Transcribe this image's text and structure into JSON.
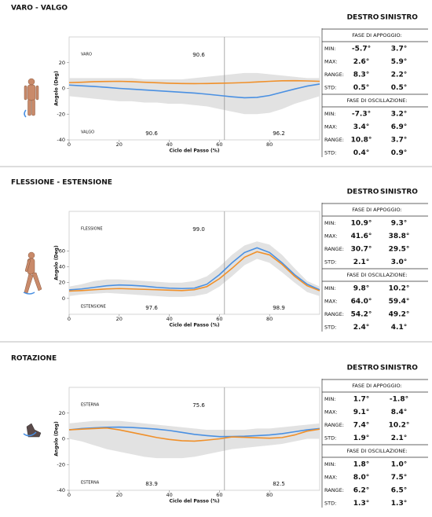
{
  "sections": [
    {
      "title": "VARO - VALGO",
      "chart": {
        "type": "line",
        "y_label": "Angolo (Deg)",
        "x_label": "Ciclo del Passo (%)",
        "xlim": [
          0,
          100
        ],
        "xticks": [
          0,
          20,
          40,
          60,
          80
        ],
        "ylim": [
          -40,
          40
        ],
        "yticks": [
          -40,
          -20,
          0,
          20
        ],
        "toe_off": 62,
        "annotations": {
          "top_left": "VARO",
          "top_center": "90.6",
          "bottom_left": "VALGO",
          "bottom_center": "90.6",
          "bottom_right": "96.2"
        },
        "x": [
          0,
          5,
          10,
          15,
          20,
          25,
          30,
          35,
          40,
          45,
          50,
          55,
          60,
          65,
          70,
          75,
          80,
          85,
          90,
          95,
          100
        ],
        "band": {
          "color": "#e2e2e2",
          "upper": [
            8,
            8,
            8,
            8,
            8,
            8,
            7,
            7,
            7,
            7,
            8,
            9,
            10,
            11,
            12,
            12,
            11,
            10,
            9,
            8,
            8
          ],
          "lower": [
            -6,
            -7,
            -8,
            -9,
            -10,
            -10,
            -11,
            -11,
            -12,
            -12,
            -13,
            -14,
            -16,
            -18,
            -20,
            -20,
            -19,
            -16,
            -12,
            -9,
            -6
          ]
        },
        "series": [
          {
            "color": "#4a90e2",
            "values": [
              2.6,
              2,
              1.5,
              0.8,
              0,
              -0.6,
              -1.2,
              -1.8,
              -2.4,
              -3,
              -3.6,
              -4.5,
              -5.5,
              -6.5,
              -7.3,
              -7,
              -5.5,
              -3,
              -0.5,
              1.8,
              3.4
            ]
          },
          {
            "color": "#f0902a",
            "values": [
              4.5,
              4.8,
              5.2,
              5.4,
              5.5,
              5.2,
              4.8,
              4.4,
              4,
              3.8,
              3.7,
              3.8,
              4,
              4.2,
              4.5,
              5,
              5.5,
              5.9,
              6,
              5.8,
              5.5
            ]
          }
        ]
      },
      "table": {
        "header": [
          "DESTRO",
          "SINISTRO"
        ],
        "groups": [
          {
            "title": "FASE DI APPOGGIO:",
            "rows": [
              [
                "MIN:",
                "-5.7°",
                "3.7°"
              ],
              [
                "MAX:",
                "2.6°",
                "5.9°"
              ],
              [
                "RANGE:",
                "8.3°",
                "2.2°"
              ],
              [
                "STD:",
                "0.5°",
                "0.5°"
              ]
            ]
          },
          {
            "title": "FASE DI OSCILLAZIONE:",
            "rows": [
              [
                "MIN:",
                "-7.3°",
                "3.2°"
              ],
              [
                "MAX:",
                "3.4°",
                "6.9°"
              ],
              [
                "RANGE:",
                "10.8°",
                "3.7°"
              ],
              [
                "STD:",
                "0.4°",
                "0.9°"
              ]
            ]
          }
        ]
      }
    },
    {
      "title": "FLESSIONE - ESTENSIONE",
      "chart": {
        "type": "line",
        "y_label": "Angolo (Deg)",
        "x_label": "Ciclo del Passo (%)",
        "xlim": [
          0,
          100
        ],
        "xticks": [
          0,
          20,
          40,
          60,
          80
        ],
        "ylim": [
          -20,
          110
        ],
        "yticks": [
          0,
          20,
          40,
          60
        ],
        "toe_off": 62,
        "annotations": {
          "top_left": "FLESSIONE",
          "top_center": "99.0",
          "bottom_left": "ESTENSIONE",
          "bottom_center": "97.6",
          "bottom_right": "98.9"
        },
        "x": [
          0,
          5,
          10,
          15,
          20,
          25,
          30,
          35,
          40,
          45,
          50,
          55,
          60,
          65,
          70,
          75,
          80,
          85,
          90,
          95,
          100
        ],
        "band": {
          "color": "#e2e2e2",
          "upper": [
            15,
            18,
            22,
            24,
            24,
            23,
            22,
            21,
            20,
            20,
            22,
            28,
            40,
            55,
            67,
            72,
            68,
            55,
            38,
            22,
            15
          ],
          "lower": [
            3,
            5,
            6,
            7,
            6,
            5,
            4,
            3,
            2,
            2,
            3,
            6,
            15,
            28,
            42,
            50,
            45,
            33,
            20,
            8,
            3
          ]
        },
        "series": [
          {
            "color": "#4a90e2",
            "values": [
              10.9,
              12,
              14,
              16,
              17,
              16.5,
              15.5,
              14,
              13,
              12.5,
              13,
              18,
              30,
              45,
              58,
              64,
              58,
              45,
              30,
              18,
              10.9
            ]
          },
          {
            "color": "#f0902a",
            "values": [
              9.3,
              10,
              11,
              12,
              12.5,
              12,
              11.5,
              11,
              10.5,
              10,
              11,
              15,
              25,
              38,
              52,
              59,
              55,
              43,
              28,
              16,
              9.8
            ]
          }
        ]
      },
      "table": {
        "header": [
          "DESTRO",
          "SINISTRO"
        ],
        "groups": [
          {
            "title": "FASE DI APPOGGIO:",
            "rows": [
              [
                "MIN:",
                "10.9°",
                "9.3°"
              ],
              [
                "MAX:",
                "41.6°",
                "38.8°"
              ],
              [
                "RANGE:",
                "30.7°",
                "29.5°"
              ],
              [
                "STD:",
                "2.1°",
                "3.0°"
              ]
            ]
          },
          {
            "title": "FASE DI OSCILLAZIONE:",
            "rows": [
              [
                "MIN:",
                "9.8°",
                "10.2°"
              ],
              [
                "MAX:",
                "64.0°",
                "59.4°"
              ],
              [
                "RANGE:",
                "54.2°",
                "49.2°"
              ],
              [
                "STD:",
                "2.4°",
                "4.1°"
              ]
            ]
          }
        ]
      }
    },
    {
      "title": "ROTAZIONE",
      "chart": {
        "type": "line",
        "y_label": "Angolo (Deg)",
        "x_label": "Ciclo del Passo (%)",
        "xlim": [
          0,
          100
        ],
        "xticks": [
          0,
          20,
          40,
          60,
          80
        ],
        "ylim": [
          -40,
          40
        ],
        "yticks": [
          -40,
          -20,
          0,
          20
        ],
        "toe_off": 62,
        "annotations": {
          "top_left": "ESTERNA",
          "top_center": "75.6",
          "bottom_left": "ESTERNA",
          "bottom_center": "83.9",
          "bottom_right": "82.5"
        },
        "x": [
          0,
          5,
          10,
          15,
          20,
          25,
          30,
          35,
          40,
          45,
          50,
          55,
          60,
          65,
          70,
          75,
          80,
          85,
          90,
          95,
          100
        ],
        "band": {
          "color": "#e2e2e2",
          "upper": [
            12,
            13,
            14,
            14,
            14,
            13,
            12,
            11,
            10,
            9,
            8,
            7,
            7,
            7,
            7,
            8,
            8,
            9,
            10,
            11,
            12
          ],
          "lower": [
            0,
            -2,
            -5,
            -8,
            -10,
            -12,
            -14,
            -15,
            -15,
            -15,
            -14,
            -12,
            -10,
            -8,
            -7,
            -6,
            -5,
            -4,
            -2,
            0,
            0
          ]
        },
        "series": [
          {
            "color": "#4a90e2",
            "values": [
              7,
              8,
              8.5,
              9,
              9.1,
              8.8,
              8.2,
              7.5,
              6.5,
              5,
              3.5,
              2.5,
              1.7,
              1.8,
              2,
              2.5,
              3,
              4,
              5.5,
              7,
              8
            ]
          },
          {
            "color": "#f0902a",
            "values": [
              7,
              7.5,
              8,
              8.4,
              7,
              5,
              3,
              1,
              -0.5,
              -1.5,
              -1.8,
              -1,
              0,
              1.5,
              1.2,
              0.8,
              0.5,
              1,
              3,
              6,
              7.5
            ]
          }
        ]
      },
      "table": {
        "header": [
          "DESTRO",
          "SINISTRO"
        ],
        "groups": [
          {
            "title": "FASE DI APPOGGIO:",
            "rows": [
              [
                "MIN:",
                "1.7°",
                "-1.8°"
              ],
              [
                "MAX:",
                "9.1°",
                "8.4°"
              ],
              [
                "RANGE:",
                "7.4°",
                "10.2°"
              ],
              [
                "STD:",
                "1.9°",
                "2.1°"
              ]
            ]
          },
          {
            "title": "FASE DI OSCILLAZIONE:",
            "rows": [
              [
                "MIN:",
                "1.8°",
                "1.0°"
              ],
              [
                "MAX:",
                "8.0°",
                "7.5°"
              ],
              [
                "RANGE:",
                "6.2°",
                "6.5°"
              ],
              [
                "STD:",
                "1.3°",
                "1.3°"
              ]
            ]
          }
        ]
      }
    }
  ]
}
